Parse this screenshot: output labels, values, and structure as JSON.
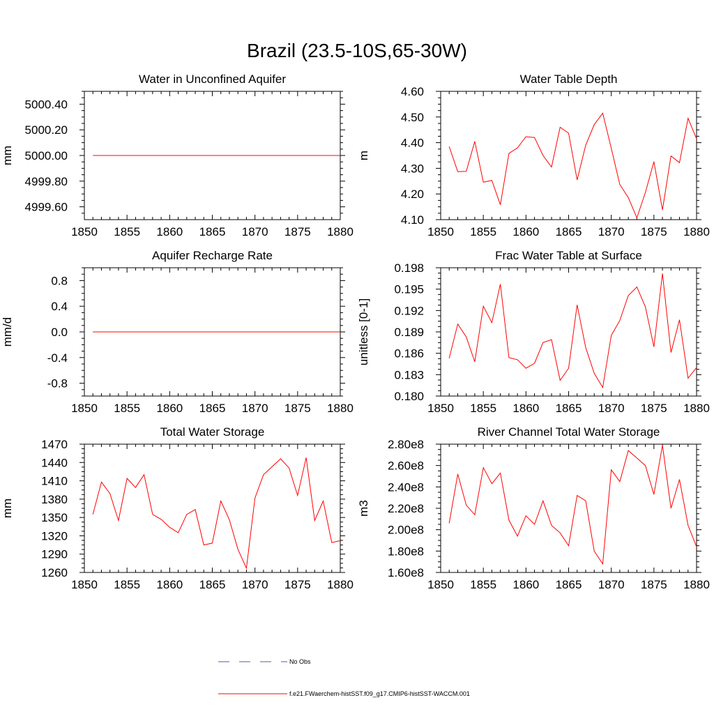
{
  "page_title": "Brazil (23.5-10S,65-30W)",
  "colors": {
    "model_line": "#ff0000",
    "obs_line": "#4a5fa8",
    "axis": "#000000"
  },
  "legend": {
    "obs_label": "No Obs",
    "model_label": "f.e21.FWaerchem-histSST.f09_g17.CMIP6-histSST-WACCM.001"
  },
  "x_years": [
    1851,
    1852,
    1853,
    1854,
    1855,
    1856,
    1857,
    1858,
    1859,
    1860,
    1861,
    1862,
    1863,
    1864,
    1865,
    1866,
    1867,
    1868,
    1869,
    1870,
    1871,
    1872,
    1873,
    1874,
    1875,
    1876,
    1877,
    1878,
    1879,
    1880
  ],
  "chart_data": [
    {
      "type": "line",
      "title": "Water in Unconfined Aquifer",
      "xlabel": "",
      "ylabel": "mm",
      "xlim": [
        1850,
        1880
      ],
      "ylim": [
        4999.5,
        5000.5
      ],
      "xticks": [
        "1850",
        "1855",
        "1860",
        "1865",
        "1870",
        "1875",
        "1880"
      ],
      "yticks": [
        "4999.60",
        "4999.80",
        "5000.00",
        "5000.20",
        "5000.40"
      ],
      "series": [
        {
          "values": [
            5000,
            5000,
            5000,
            5000,
            5000,
            5000,
            5000,
            5000,
            5000,
            5000,
            5000,
            5000,
            5000,
            5000,
            5000,
            5000,
            5000,
            5000,
            5000,
            5000,
            5000,
            5000,
            5000,
            5000,
            5000,
            5000,
            5000,
            5000,
            5000,
            5000
          ]
        }
      ]
    },
    {
      "type": "line",
      "title": "Water Table Depth",
      "xlabel": "",
      "ylabel": "m",
      "xlim": [
        1850,
        1880
      ],
      "ylim": [
        4.1,
        4.6
      ],
      "xticks": [
        "1850",
        "1855",
        "1860",
        "1865",
        "1870",
        "1875",
        "1880"
      ],
      "yticks": [
        "4.10",
        "4.20",
        "4.30",
        "4.40",
        "4.50",
        "4.60"
      ],
      "series": [
        {
          "values": [
            4.385,
            4.287,
            4.288,
            4.405,
            4.246,
            4.253,
            4.158,
            4.358,
            4.38,
            4.423,
            4.42,
            4.35,
            4.305,
            4.46,
            4.437,
            4.255,
            4.39,
            4.47,
            4.515,
            4.378,
            4.237,
            4.186,
            4.107,
            4.206,
            4.326,
            4.138,
            4.348,
            4.322,
            4.495,
            4.415
          ]
        }
      ]
    },
    {
      "type": "line",
      "title": "Aquifer Recharge Rate",
      "xlabel": "",
      "ylabel": "mm/d",
      "xlim": [
        1850,
        1880
      ],
      "ylim": [
        -1.0,
        1.0
      ],
      "xticks": [
        "1850",
        "1855",
        "1860",
        "1865",
        "1870",
        "1875",
        "1880"
      ],
      "yticks": [
        "-0.8",
        "-0.4",
        "0.0",
        "0.4",
        "0.8"
      ],
      "series": [
        {
          "values": [
            0,
            0,
            0,
            0,
            0,
            0,
            0,
            0,
            0,
            0,
            0,
            0,
            0,
            0,
            0,
            0,
            0,
            0,
            0,
            0,
            0,
            0,
            0,
            0,
            0,
            0,
            0,
            0,
            0,
            0
          ]
        }
      ]
    },
    {
      "type": "line",
      "title": "Frac Water Table at Surface",
      "xlabel": "",
      "ylabel": "unitless [0-1]",
      "xlim": [
        1850,
        1880
      ],
      "ylim": [
        0.18,
        0.198
      ],
      "xticks": [
        "1850",
        "1855",
        "1860",
        "1865",
        "1870",
        "1875",
        "1880"
      ],
      "yticks": [
        "0.180",
        "0.183",
        "0.186",
        "0.189",
        "0.192",
        "0.195",
        "0.198"
      ],
      "series": [
        {
          "values": [
            0.1853,
            0.1901,
            0.1883,
            0.1848,
            0.1926,
            0.1903,
            0.1957,
            0.1854,
            0.1851,
            0.1839,
            0.1846,
            0.1875,
            0.1879,
            0.1822,
            0.1839,
            0.1928,
            0.1868,
            0.1832,
            0.1812,
            0.1885,
            0.1906,
            0.1941,
            0.1953,
            0.1925,
            0.1869,
            0.1972,
            0.1861,
            0.1907,
            0.1825,
            0.184
          ]
        }
      ]
    },
    {
      "type": "line",
      "title": "Total Water Storage",
      "xlabel": "",
      "ylabel": "mm",
      "xlim": [
        1850,
        1880
      ],
      "ylim": [
        1260,
        1470
      ],
      "xticks": [
        "1850",
        "1855",
        "1860",
        "1865",
        "1870",
        "1875",
        "1880"
      ],
      "yticks": [
        "1260",
        "1290",
        "1320",
        "1350",
        "1380",
        "1410",
        "1440",
        "1470"
      ],
      "series": [
        {
          "values": [
            1355,
            1408,
            1389,
            1345,
            1414,
            1399,
            1420,
            1355,
            1347,
            1334,
            1325,
            1355,
            1363,
            1305,
            1308,
            1377,
            1346,
            1298,
            1267,
            1382,
            1420,
            1433,
            1446,
            1431,
            1386,
            1448,
            1345,
            1377,
            1309,
            1312
          ]
        }
      ]
    },
    {
      "type": "line",
      "title": "River Channel Total Water Storage",
      "xlabel": "",
      "ylabel": "m3",
      "xlim": [
        1850,
        1880
      ],
      "ylim": [
        160000000.0,
        280000000.0
      ],
      "xticks": [
        "1850",
        "1855",
        "1860",
        "1865",
        "1870",
        "1875",
        "1880"
      ],
      "yticks": [
        "1.60e8",
        "1.80e8",
        "2.00e8",
        "2.20e8",
        "2.40e8",
        "2.60e8",
        "2.80e8"
      ],
      "series": [
        {
          "values": [
            206000000,
            252000000,
            223000000,
            214000000,
            258000000,
            243000000,
            253000000,
            209000000,
            194000000,
            213000000,
            205000000,
            227000000,
            204000000,
            197000000,
            185000000,
            232000000,
            227000000,
            180000000,
            168000000,
            256000000,
            245000000,
            274000000,
            267000000,
            260000000,
            233000000,
            279000000,
            220000000,
            247000000,
            204000000,
            184000000
          ]
        }
      ]
    }
  ]
}
